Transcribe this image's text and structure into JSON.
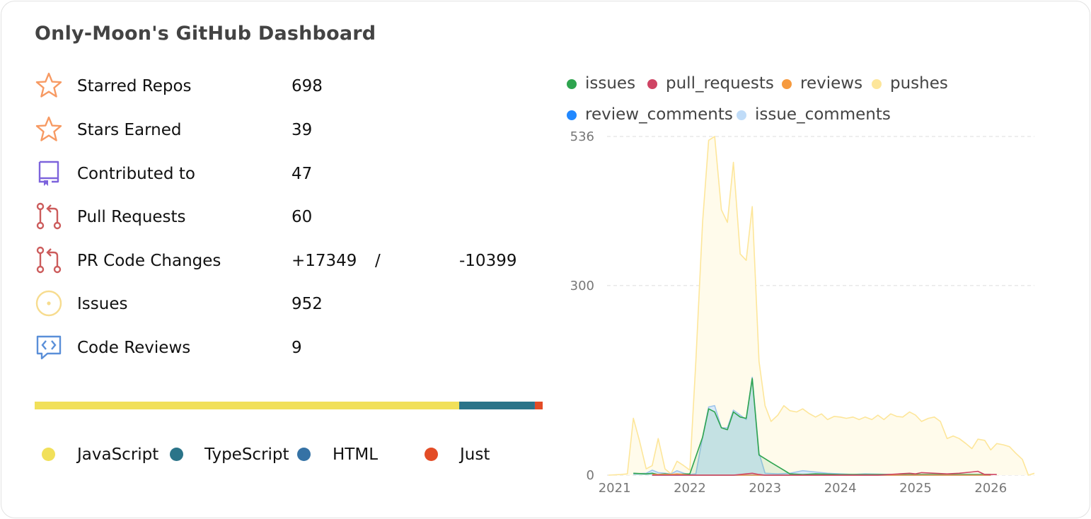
{
  "header": {
    "title": "Only-Moon's GitHub Dashboard"
  },
  "stats": [
    {
      "label": "Starred Repos",
      "value": "698",
      "icon": "star-icon"
    },
    {
      "label": "Stars Earned",
      "value": "39",
      "icon": "star-icon"
    },
    {
      "label": "Contributed to",
      "value": "47",
      "icon": "repo-icon"
    },
    {
      "label": "Pull Requests",
      "value": "60",
      "icon": "pull-request-icon"
    },
    {
      "label": "PR Code Changes",
      "additions": "+17349",
      "separator": "/",
      "deletions": "-10399",
      "icon": "pull-request-icon"
    },
    {
      "label": "Issues",
      "value": "952",
      "icon": "issue-icon"
    },
    {
      "label": "Code Reviews",
      "value": "9",
      "icon": "code-review-icon"
    }
  ],
  "languages": [
    {
      "name": "JavaScript",
      "color": "#f1e05a",
      "share": 0.835
    },
    {
      "name": "TypeScript",
      "color": "#2b7489",
      "share": 0.148
    },
    {
      "name": "HTML",
      "color": "#3572a5",
      "share": 0.002
    },
    {
      "name": "Just",
      "color": "#e34c26",
      "share": 0.015
    }
  ],
  "colors": {
    "star_icon": "#f79a63",
    "repo_icon": "#7d63dc",
    "pr_icon": "#cc5c5c",
    "issue_icon": "#f7dc8f",
    "review_icon": "#5a8fd8"
  },
  "chart_legend": [
    {
      "name": "issues",
      "color": "#2ea44f"
    },
    {
      "name": "pull_requests",
      "color": "#cf4464"
    },
    {
      "name": "reviews",
      "color": "#f69a3e"
    },
    {
      "name": "pushes",
      "color": "#fde69a"
    },
    {
      "name": "review_comments",
      "color": "#2188ff"
    },
    {
      "name": "issue_comments",
      "color": "#c0dcf8"
    }
  ],
  "chart_data": {
    "type": "area",
    "x_ticks": [
      "2021",
      "2022",
      "2023",
      "2024",
      "2025",
      "2026"
    ],
    "y_ticks": [
      536,
      300,
      0
    ],
    "ylim": [
      0,
      536
    ],
    "xlim": [
      2020.9,
      2026.58
    ],
    "grid": true,
    "series": [
      {
        "name": "pushes",
        "color": "#fde69a",
        "fill": "#fffbeb",
        "points": [
          [
            2020.92,
            0
          ],
          [
            2021.08,
            1
          ],
          [
            2021.17,
            2
          ],
          [
            2021.25,
            90
          ],
          [
            2021.33,
            55
          ],
          [
            2021.42,
            10
          ],
          [
            2021.5,
            15
          ],
          [
            2021.58,
            58
          ],
          [
            2021.67,
            10
          ],
          [
            2021.75,
            2
          ],
          [
            2021.83,
            22
          ],
          [
            2021.92,
            15
          ],
          [
            2022.0,
            8
          ],
          [
            2022.08,
            180
          ],
          [
            2022.17,
            400
          ],
          [
            2022.25,
            530
          ],
          [
            2022.33,
            536
          ],
          [
            2022.42,
            420
          ],
          [
            2022.5,
            400
          ],
          [
            2022.58,
            495
          ],
          [
            2022.67,
            350
          ],
          [
            2022.75,
            340
          ],
          [
            2022.83,
            425
          ],
          [
            2022.92,
            180
          ],
          [
            2023.0,
            110
          ],
          [
            2023.08,
            85
          ],
          [
            2023.17,
            95
          ],
          [
            2023.25,
            110
          ],
          [
            2023.33,
            102
          ],
          [
            2023.42,
            100
          ],
          [
            2023.5,
            105
          ],
          [
            2023.58,
            98
          ],
          [
            2023.67,
            92
          ],
          [
            2023.75,
            97
          ],
          [
            2023.83,
            88
          ],
          [
            2023.92,
            93
          ],
          [
            2024.0,
            92
          ],
          [
            2024.08,
            90
          ],
          [
            2024.17,
            92
          ],
          [
            2024.25,
            88
          ],
          [
            2024.33,
            92
          ],
          [
            2024.42,
            88
          ],
          [
            2024.5,
            95
          ],
          [
            2024.58,
            88
          ],
          [
            2024.67,
            97
          ],
          [
            2024.75,
            93
          ],
          [
            2024.83,
            92
          ],
          [
            2024.92,
            100
          ],
          [
            2025.0,
            95
          ],
          [
            2025.08,
            85
          ],
          [
            2025.17,
            90
          ],
          [
            2025.25,
            92
          ],
          [
            2025.33,
            85
          ],
          [
            2025.42,
            58
          ],
          [
            2025.5,
            62
          ],
          [
            2025.58,
            58
          ],
          [
            2025.67,
            50
          ],
          [
            2025.75,
            42
          ],
          [
            2025.83,
            57
          ],
          [
            2025.92,
            55
          ],
          [
            2026.0,
            40
          ],
          [
            2026.08,
            50
          ],
          [
            2026.17,
            48
          ],
          [
            2026.25,
            45
          ],
          [
            2026.33,
            35
          ],
          [
            2026.42,
            25
          ],
          [
            2026.5,
            0
          ],
          [
            2026.58,
            3
          ]
        ]
      },
      {
        "name": "issue_comments",
        "color": "#9fc5ec",
        "fill": "#d9eaf8",
        "points": [
          [
            2021.25,
            2
          ],
          [
            2021.42,
            3
          ],
          [
            2021.5,
            8
          ],
          [
            2021.58,
            4
          ],
          [
            2021.67,
            3
          ],
          [
            2021.75,
            2
          ],
          [
            2021.83,
            7
          ],
          [
            2021.92,
            3
          ],
          [
            2022.0,
            1
          ],
          [
            2022.08,
            2
          ],
          [
            2022.17,
            60
          ],
          [
            2022.25,
            108
          ],
          [
            2022.33,
            110
          ],
          [
            2022.42,
            75
          ],
          [
            2022.5,
            75
          ],
          [
            2022.58,
            103
          ],
          [
            2022.67,
            95
          ],
          [
            2022.75,
            88
          ],
          [
            2022.83,
            155
          ],
          [
            2022.92,
            35
          ],
          [
            2023.0,
            3
          ],
          [
            2023.17,
            2
          ],
          [
            2023.33,
            3
          ],
          [
            2023.5,
            7
          ],
          [
            2023.67,
            5
          ],
          [
            2023.83,
            3
          ],
          [
            2024.0,
            2
          ],
          [
            2024.17,
            1
          ],
          [
            2024.33,
            2
          ],
          [
            2024.67,
            1
          ],
          [
            2024.83,
            1
          ],
          [
            2025.0,
            0
          ]
        ]
      },
      {
        "name": "issues",
        "color": "#2ea44f",
        "fill": "rgba(46,164,79,0.12)",
        "points": [
          [
            2021.25,
            3
          ],
          [
            2021.42,
            2
          ],
          [
            2021.5,
            3
          ],
          [
            2021.58,
            1
          ],
          [
            2021.67,
            2
          ],
          [
            2021.75,
            1
          ],
          [
            2022.0,
            2
          ],
          [
            2022.17,
            60
          ],
          [
            2022.25,
            105
          ],
          [
            2022.33,
            100
          ],
          [
            2022.42,
            75
          ],
          [
            2022.5,
            72
          ],
          [
            2022.58,
            100
          ],
          [
            2022.67,
            92
          ],
          [
            2022.75,
            90
          ],
          [
            2022.83,
            153
          ],
          [
            2022.92,
            32
          ],
          [
            2023.08,
            20
          ],
          [
            2023.25,
            8
          ],
          [
            2023.33,
            2
          ],
          [
            2023.5,
            1
          ],
          [
            2023.67,
            2
          ],
          [
            2024.0,
            1
          ],
          [
            2024.5,
            1
          ],
          [
            2025.0,
            1
          ],
          [
            2025.5,
            1
          ],
          [
            2026.0,
            1
          ]
        ]
      },
      {
        "name": "review_comments",
        "color": "#2188ff",
        "fill": "none",
        "points": [
          [
            2021.5,
            0
          ],
          [
            2022.0,
            0
          ],
          [
            2023.0,
            0
          ],
          [
            2024.0,
            0
          ],
          [
            2025.0,
            0
          ],
          [
            2026.0,
            0
          ]
        ]
      },
      {
        "name": "reviews",
        "color": "#f69a3e",
        "fill": "none",
        "points": [
          [
            2021.5,
            1
          ],
          [
            2021.75,
            1
          ],
          [
            2021.83,
            2
          ],
          [
            2022.0,
            0
          ],
          [
            2023.0,
            0
          ],
          [
            2024.0,
            0
          ],
          [
            2025.0,
            0
          ],
          [
            2026.0,
            0
          ]
        ]
      },
      {
        "name": "pull_requests",
        "color": "#cf4464",
        "fill": "none",
        "points": [
          [
            2021.5,
            0
          ],
          [
            2021.75,
            0
          ],
          [
            2022.0,
            0
          ],
          [
            2022.58,
            0
          ],
          [
            2022.75,
            2
          ],
          [
            2022.83,
            3
          ],
          [
            2022.92,
            1
          ],
          [
            2023.0,
            0
          ],
          [
            2023.5,
            0
          ],
          [
            2024.0,
            0
          ],
          [
            2024.5,
            0
          ],
          [
            2024.92,
            3
          ],
          [
            2025.0,
            2
          ],
          [
            2025.08,
            4
          ],
          [
            2025.25,
            3
          ],
          [
            2025.42,
            2
          ],
          [
            2025.58,
            3
          ],
          [
            2025.75,
            5
          ],
          [
            2025.83,
            6
          ],
          [
            2025.92,
            1
          ],
          [
            2026.08,
            1
          ]
        ]
      }
    ]
  }
}
